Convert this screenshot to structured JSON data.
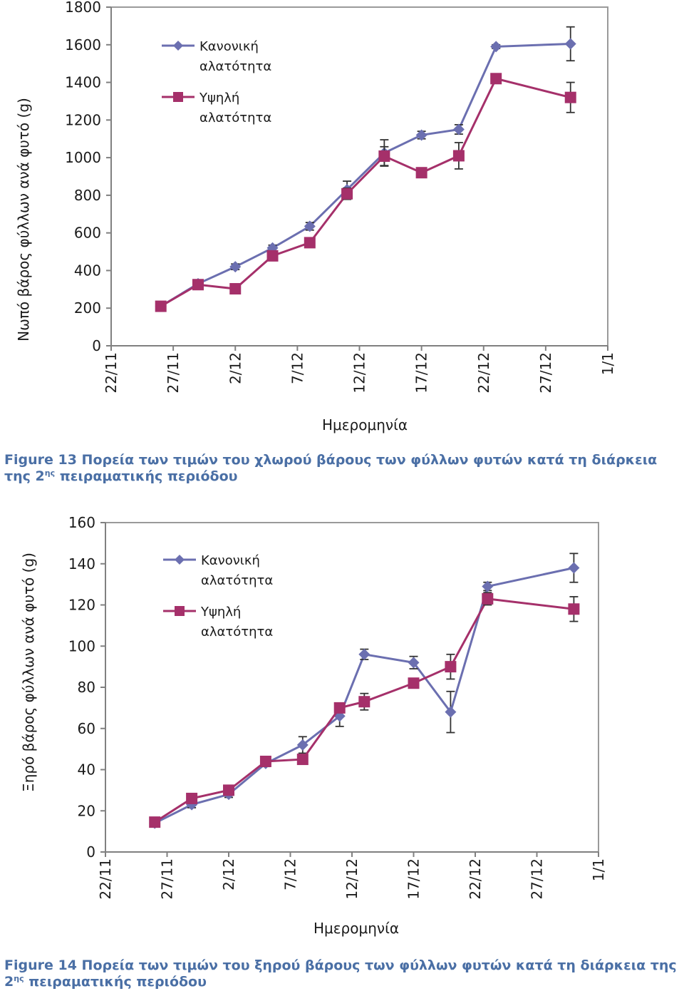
{
  "charts": [
    {
      "chart_data": {
        "type": "line",
        "xlabel": "Ημερομηνία",
        "ylabel": "Νωπό βάρος φύλλων ανά φυτό (g)",
        "x_ticks": [
          "22/11",
          "27/11",
          "2/12",
          "7/12",
          "12/12",
          "17/12",
          "22/12",
          "27/12",
          "1/1"
        ],
        "xlim": [
          "22/11",
          "1/1"
        ],
        "y_ticks": [
          0,
          200,
          400,
          600,
          800,
          1000,
          1200,
          1400,
          1600,
          1800
        ],
        "ylim": [
          0,
          1800
        ],
        "grid": false,
        "legend_position": "top-left",
        "series": [
          {
            "name": "Κανονική αλατότητα",
            "name_lines": [
              "Κανονική",
              "αλατότητα"
            ],
            "color": "#6b6fb0",
            "marker": "diamond",
            "points": [
              {
                "x": "26/11",
                "y": 210,
                "err": 12
              },
              {
                "x": "29/11",
                "y": 330,
                "err": 15
              },
              {
                "x": "2/12",
                "y": 420,
                "err": 15
              },
              {
                "x": "5/12",
                "y": 520,
                "err": 15
              },
              {
                "x": "8/12",
                "y": 635,
                "err": 20
              },
              {
                "x": "11/12",
                "y": 830,
                "err": 45
              },
              {
                "x": "14/12",
                "y": 1025,
                "err": 70
              },
              {
                "x": "17/12",
                "y": 1120,
                "err": 20
              },
              {
                "x": "20/12",
                "y": 1150,
                "err": 25
              },
              {
                "x": "23/12",
                "y": 1590,
                "err": 10
              },
              {
                "x": "29/12",
                "y": 1605,
                "err": 90
              }
            ]
          },
          {
            "name": "Υψηλή αλατότητα",
            "name_lines": [
              "Υψηλή",
              "αλατότητα"
            ],
            "color": "#a5306a",
            "marker": "square",
            "points": [
              {
                "x": "26/11",
                "y": 210,
                "err": 10
              },
              {
                "x": "29/11",
                "y": 325,
                "err": 25
              },
              {
                "x": "2/12",
                "y": 303,
                "err": 15
              },
              {
                "x": "5/12",
                "y": 478,
                "err": 15
              },
              {
                "x": "8/12",
                "y": 548,
                "err": 20
              },
              {
                "x": "11/12",
                "y": 808,
                "err": 30
              },
              {
                "x": "14/12",
                "y": 1008,
                "err": 50
              },
              {
                "x": "17/12",
                "y": 920,
                "err": 15
              },
              {
                "x": "20/12",
                "y": 1010,
                "err": 70
              },
              {
                "x": "23/12",
                "y": 1420,
                "err": 25
              },
              {
                "x": "29/12",
                "y": 1320,
                "err": 80
              }
            ]
          }
        ]
      },
      "caption": {
        "prefix": "Figure 13 Πορεία των τιμών του χλωρού βάρους των φύλλων φυτών κατά τη διάρκεια της 2",
        "superscript": "ης",
        "suffix": " πειραματικής περιόδου"
      }
    },
    {
      "chart_data": {
        "type": "line",
        "xlabel": "Ημερομηνία",
        "ylabel": "Ξηρό βάρος φύλλων ανά φυτό (g)",
        "x_ticks": [
          "22/11",
          "27/11",
          "2/12",
          "7/12",
          "12/12",
          "17/12",
          "22/12",
          "27/12",
          "1/1"
        ],
        "xlim": [
          "22/11",
          "1/1"
        ],
        "y_ticks": [
          0,
          20,
          40,
          60,
          80,
          100,
          120,
          140,
          160
        ],
        "ylim": [
          0,
          160
        ],
        "grid": false,
        "legend_position": "top-left",
        "series": [
          {
            "name": "Κανονική αλατότητα",
            "name_lines": [
              "Κανονική",
              "αλατότητα"
            ],
            "color": "#6b6fb0",
            "marker": "diamond",
            "points": [
              {
                "x": "26/11",
                "y": 14,
                "err": 1
              },
              {
                "x": "29/11",
                "y": 23,
                "err": 1.5
              },
              {
                "x": "2/12",
                "y": 28,
                "err": 1.5
              },
              {
                "x": "5/12",
                "y": 43,
                "err": 1.5
              },
              {
                "x": "8/12",
                "y": 52,
                "err": 4
              },
              {
                "x": "11/12",
                "y": 66,
                "err": 5
              },
              {
                "x": "13/12",
                "y": 96,
                "err": 2.5
              },
              {
                "x": "17/12",
                "y": 92,
                "err": 3
              },
              {
                "x": "20/12",
                "y": 68,
                "err": 10
              },
              {
                "x": "23/12",
                "y": 129,
                "err": 2
              },
              {
                "x": "30/12",
                "y": 138,
                "err": 7
              }
            ]
          },
          {
            "name": "Υψηλή αλατότητα",
            "name_lines": [
              "Υψηλή",
              "αλατότητα"
            ],
            "color": "#a5306a",
            "marker": "square",
            "points": [
              {
                "x": "26/11",
                "y": 14.5,
                "err": 1
              },
              {
                "x": "29/11",
                "y": 26,
                "err": 1.5
              },
              {
                "x": "2/12",
                "y": 30,
                "err": 1.5
              },
              {
                "x": "5/12",
                "y": 44,
                "err": 1.5
              },
              {
                "x": "8/12",
                "y": 45,
                "err": 1.5
              },
              {
                "x": "11/12",
                "y": 70,
                "err": 2
              },
              {
                "x": "13/12",
                "y": 73,
                "err": 4
              },
              {
                "x": "17/12",
                "y": 82,
                "err": 1.5
              },
              {
                "x": "20/12",
                "y": 90,
                "err": 6
              },
              {
                "x": "23/12",
                "y": 123,
                "err": 3
              },
              {
                "x": "30/12",
                "y": 118,
                "err": 6
              }
            ]
          }
        ]
      },
      "caption": {
        "prefix": "Figure 14 Πορεία των τιμών του ξηρού βάρους των φύλλων φυτών κατά τη διάρκεια της 2",
        "superscript": "ης",
        "suffix": " πειραματικής περιόδου"
      }
    }
  ]
}
